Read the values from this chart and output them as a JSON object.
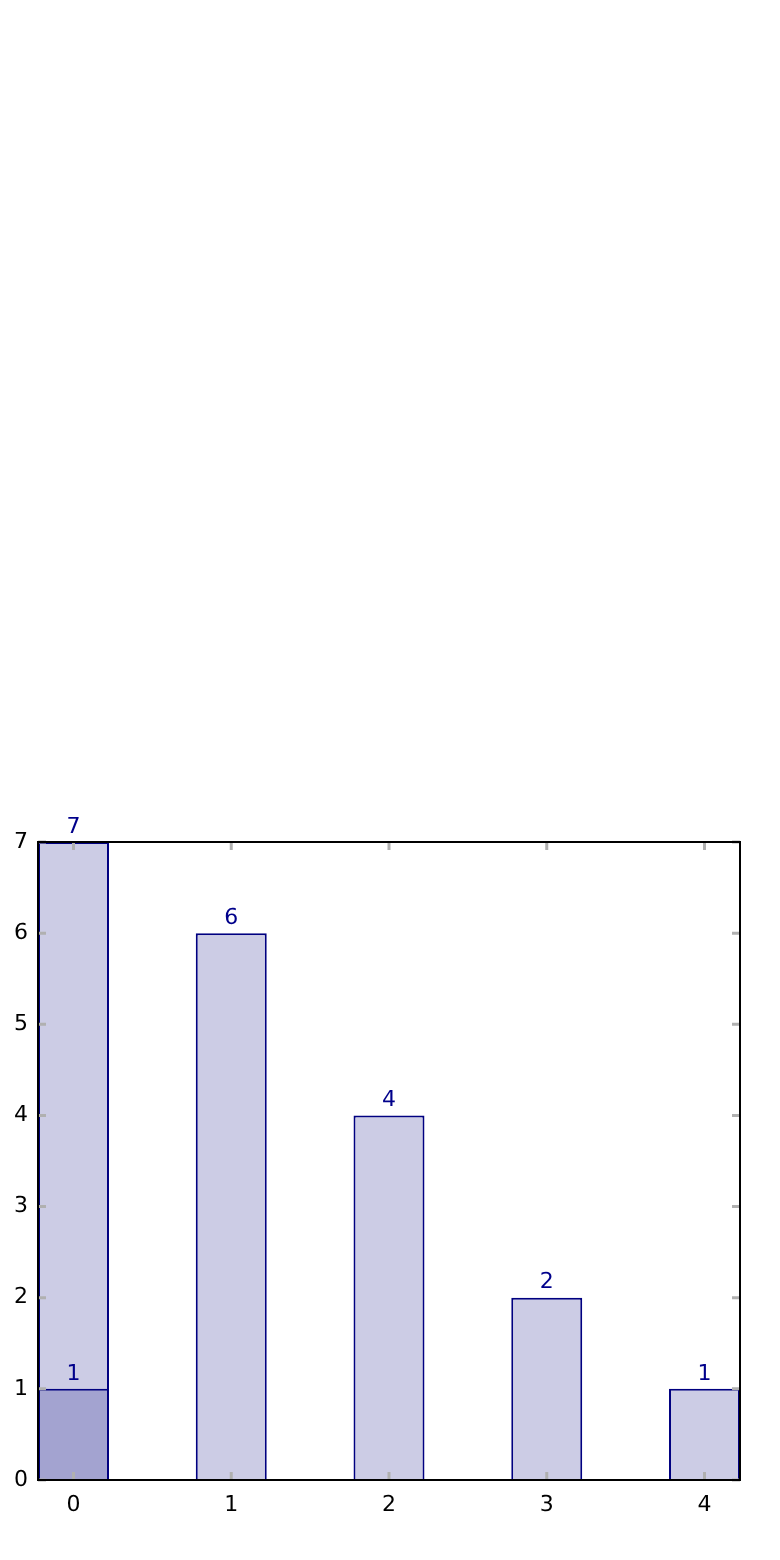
{
  "chart_data": {
    "type": "bar",
    "x": [
      0,
      1,
      2,
      3,
      4
    ],
    "xlim": [
      -0.225,
      4.225
    ],
    "xticks": [
      0,
      1,
      2,
      3,
      4
    ],
    "ylim": [
      0,
      7
    ],
    "yticks": [
      0,
      1,
      2,
      3,
      4,
      5,
      6,
      7
    ],
    "series": [
      {
        "color": "#cccce5",
        "values": [
          7,
          6,
          4,
          2,
          1
        ]
      },
      {
        "color": "#a3a3d0",
        "values": [
          1,
          null,
          null,
          null,
          null
        ]
      }
    ],
    "data_labels": true,
    "grid": false,
    "legend": false
  }
}
